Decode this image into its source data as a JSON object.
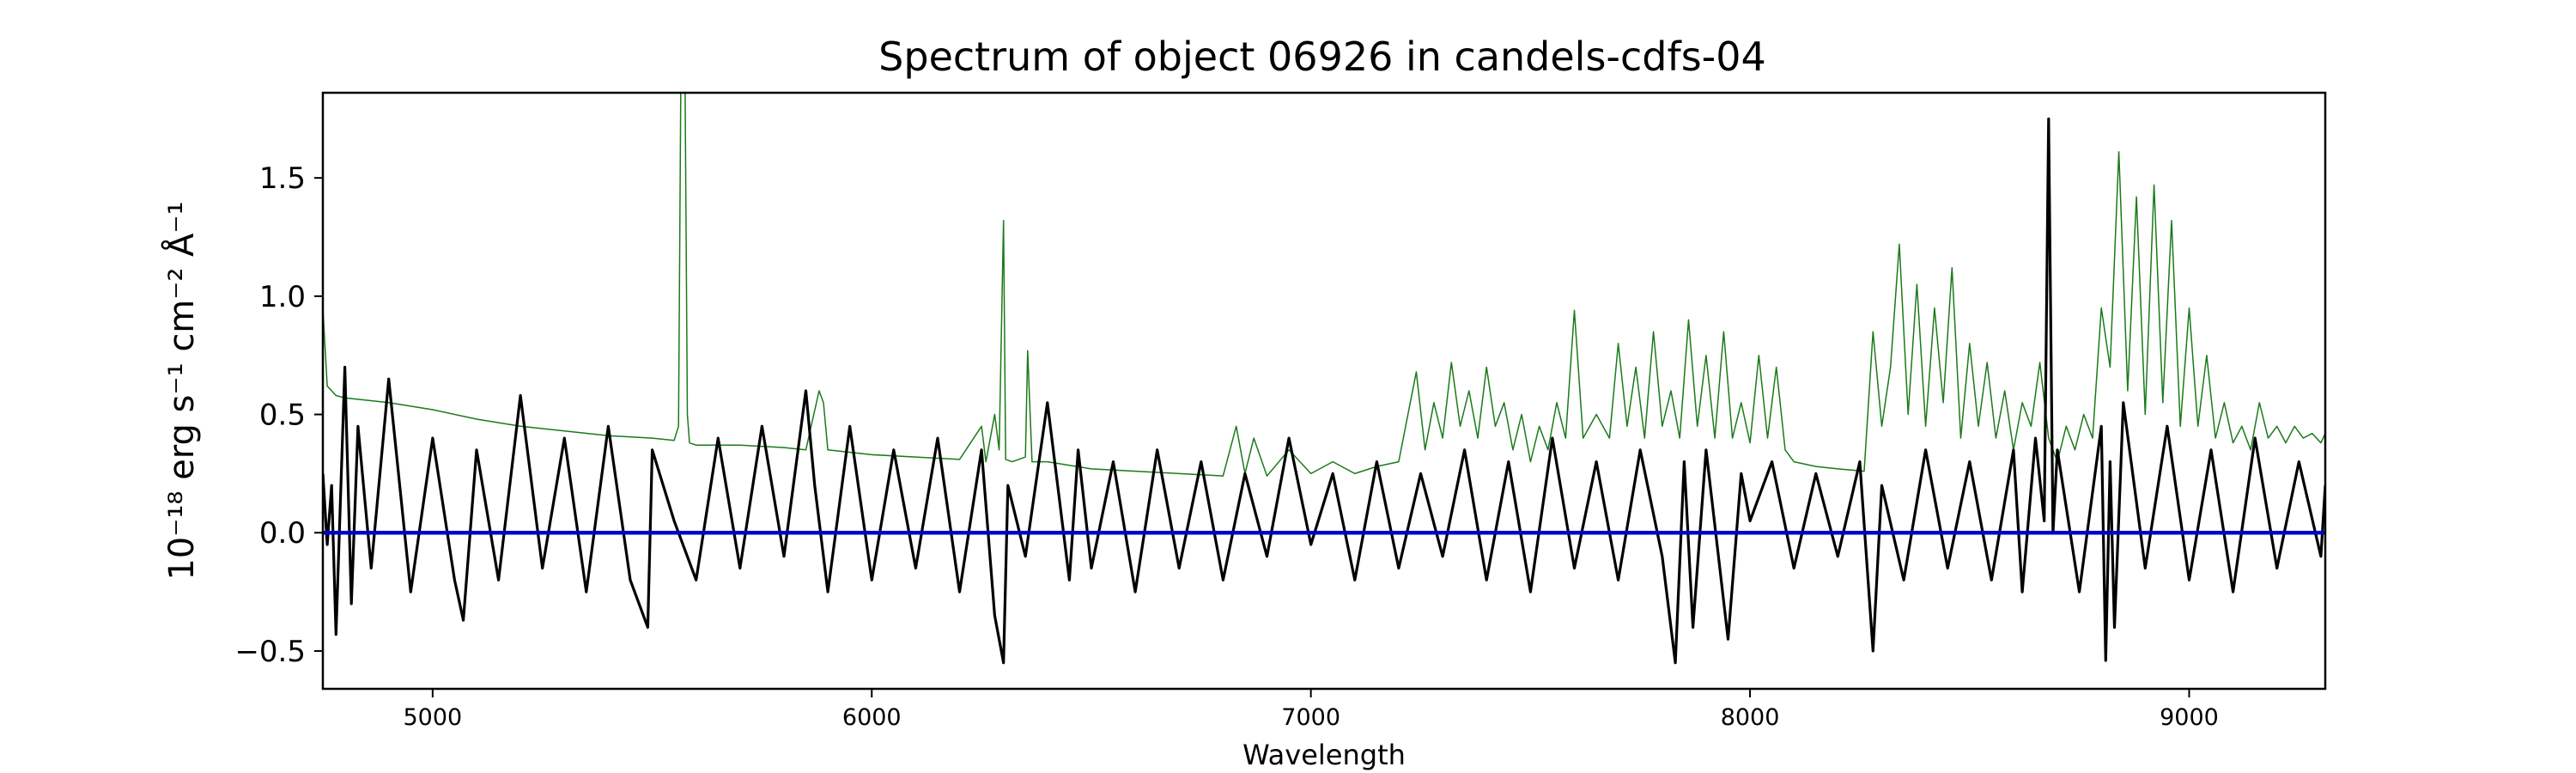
{
  "chart_data": {
    "type": "line",
    "title": "Spectrum of object 06926 in candels-cdfs-04",
    "xlabel": "Wavelength",
    "ylabel": "10⁻¹⁸ erg s⁻¹ cm⁻² Å⁻¹",
    "xlim": [
      4750,
      9310
    ],
    "ylim": [
      -0.66,
      1.86
    ],
    "x_ticks": [
      5000,
      6000,
      7000,
      8000,
      9000
    ],
    "y_ticks": [
      {
        "value": -0.5,
        "label": "−0.5"
      },
      {
        "value": 0.0,
        "label": "0.0"
      },
      {
        "value": 0.5,
        "label": "0.5"
      },
      {
        "value": 1.0,
        "label": "1.0"
      },
      {
        "value": 1.5,
        "label": "1.5"
      }
    ],
    "grid": false,
    "series": [
      {
        "role": "noise",
        "color": "#1a7a1a",
        "x": [
          4750,
          4760,
          4780,
          4800,
          4900,
          5000,
          5100,
          5200,
          5300,
          5400,
          5500,
          5550,
          5560,
          5565,
          5575,
          5580,
          5585,
          5600,
          5700,
          5800,
          5850,
          5880,
          5890,
          5900,
          5950,
          6000,
          6100,
          6200,
          6250,
          6260,
          6280,
          6290,
          6300,
          6305,
          6320,
          6350,
          6355,
          6365,
          6400,
          6500,
          6600,
          6700,
          6800,
          6830,
          6850,
          6870,
          6900,
          6950,
          7000,
          7050,
          7100,
          7150,
          7200,
          7240,
          7260,
          7280,
          7300,
          7320,
          7340,
          7360,
          7380,
          7400,
          7420,
          7440,
          7460,
          7480,
          7500,
          7520,
          7540,
          7560,
          7580,
          7600,
          7620,
          7650,
          7680,
          7700,
          7720,
          7740,
          7760,
          7780,
          7800,
          7820,
          7840,
          7860,
          7880,
          7900,
          7920,
          7940,
          7960,
          7980,
          8000,
          8020,
          8040,
          8060,
          8080,
          8100,
          8150,
          8200,
          8260,
          8280,
          8300,
          8320,
          8340,
          8360,
          8380,
          8400,
          8420,
          8440,
          8460,
          8480,
          8500,
          8520,
          8540,
          8560,
          8580,
          8600,
          8620,
          8640,
          8660,
          8680,
          8700,
          8720,
          8740,
          8760,
          8780,
          8800,
          8820,
          8840,
          8860,
          8880,
          8900,
          8920,
          8940,
          8960,
          8980,
          9000,
          9020,
          9040,
          9060,
          9080,
          9100,
          9120,
          9140,
          9160,
          9180,
          9200,
          9220,
          9240,
          9260,
          9280,
          9300,
          9310
        ],
        "y": [
          0.95,
          0.62,
          0.58,
          0.57,
          0.55,
          0.52,
          0.48,
          0.45,
          0.43,
          0.41,
          0.4,
          0.39,
          0.45,
          1.86,
          1.86,
          0.5,
          0.38,
          0.37,
          0.37,
          0.36,
          0.35,
          0.6,
          0.55,
          0.35,
          0.34,
          0.33,
          0.32,
          0.31,
          0.45,
          0.3,
          0.5,
          0.35,
          1.32,
          0.31,
          0.3,
          0.32,
          0.77,
          0.3,
          0.3,
          0.27,
          0.26,
          0.25,
          0.24,
          0.45,
          0.25,
          0.4,
          0.24,
          0.35,
          0.25,
          0.3,
          0.25,
          0.28,
          0.3,
          0.68,
          0.35,
          0.55,
          0.4,
          0.72,
          0.45,
          0.6,
          0.4,
          0.7,
          0.45,
          0.55,
          0.35,
          0.5,
          0.3,
          0.45,
          0.35,
          0.55,
          0.4,
          0.94,
          0.4,
          0.5,
          0.4,
          0.8,
          0.45,
          0.7,
          0.4,
          0.85,
          0.45,
          0.6,
          0.4,
          0.9,
          0.45,
          0.75,
          0.4,
          0.85,
          0.4,
          0.55,
          0.38,
          0.75,
          0.4,
          0.7,
          0.35,
          0.3,
          0.28,
          0.27,
          0.26,
          0.85,
          0.45,
          0.7,
          1.22,
          0.5,
          1.05,
          0.45,
          0.95,
          0.55,
          1.12,
          0.4,
          0.8,
          0.45,
          0.72,
          0.4,
          0.6,
          0.35,
          0.55,
          0.45,
          0.72,
          0.4,
          0.3,
          0.45,
          0.35,
          0.5,
          0.4,
          0.95,
          0.7,
          1.61,
          0.6,
          1.42,
          0.5,
          1.47,
          0.55,
          1.32,
          0.45,
          0.95,
          0.45,
          0.75,
          0.4,
          0.55,
          0.38,
          0.45,
          0.35,
          0.55,
          0.4,
          0.45,
          0.38,
          0.45,
          0.4,
          0.42,
          0.38,
          0.42
        ]
      },
      {
        "role": "flux",
        "color": "#000000",
        "x": [
          4750,
          4760,
          4770,
          4780,
          4800,
          4815,
          4830,
          4860,
          4900,
          4950,
          5000,
          5050,
          5070,
          5100,
          5150,
          5200,
          5250,
          5300,
          5350,
          5400,
          5450,
          5490,
          5500,
          5550,
          5600,
          5650,
          5700,
          5750,
          5800,
          5850,
          5870,
          5900,
          5950,
          6000,
          6050,
          6100,
          6150,
          6200,
          6250,
          6280,
          6300,
          6310,
          6350,
          6400,
          6450,
          6470,
          6500,
          6550,
          6600,
          6650,
          6700,
          6750,
          6800,
          6850,
          6900,
          6950,
          7000,
          7050,
          7100,
          7150,
          7200,
          7250,
          7300,
          7350,
          7400,
          7450,
          7500,
          7550,
          7600,
          7650,
          7700,
          7750,
          7800,
          7830,
          7850,
          7870,
          7900,
          7950,
          7980,
          8000,
          8050,
          8100,
          8150,
          8200,
          8250,
          8280,
          8300,
          8350,
          8400,
          8450,
          8500,
          8550,
          8600,
          8620,
          8650,
          8670,
          8680,
          8690,
          8700,
          8750,
          8800,
          8810,
          8820,
          8830,
          8850,
          8900,
          8950,
          9000,
          9050,
          9100,
          9150,
          9200,
          9250,
          9300,
          9310
        ],
        "y": [
          0.25,
          -0.05,
          0.2,
          -0.43,
          0.7,
          -0.3,
          0.45,
          -0.15,
          0.65,
          -0.25,
          0.4,
          -0.2,
          -0.37,
          0.35,
          -0.2,
          0.58,
          -0.15,
          0.4,
          -0.25,
          0.45,
          -0.2,
          -0.4,
          0.35,
          0.05,
          -0.2,
          0.4,
          -0.15,
          0.45,
          -0.1,
          0.6,
          0.2,
          -0.25,
          0.45,
          -0.2,
          0.35,
          -0.15,
          0.4,
          -0.25,
          0.35,
          -0.35,
          -0.55,
          0.2,
          -0.1,
          0.55,
          -0.2,
          0.35,
          -0.15,
          0.3,
          -0.25,
          0.35,
          -0.15,
          0.3,
          -0.2,
          0.25,
          -0.1,
          0.4,
          -0.05,
          0.25,
          -0.2,
          0.3,
          -0.15,
          0.25,
          -0.1,
          0.35,
          -0.2,
          0.3,
          -0.25,
          0.4,
          -0.15,
          0.3,
          -0.2,
          0.35,
          -0.1,
          -0.55,
          0.3,
          -0.4,
          0.35,
          -0.45,
          0.25,
          0.05,
          0.3,
          -0.15,
          0.25,
          -0.1,
          0.3,
          -0.5,
          0.2,
          -0.2,
          0.35,
          -0.15,
          0.3,
          -0.2,
          0.35,
          -0.25,
          0.4,
          0.05,
          1.75,
          0.0,
          0.35,
          -0.25,
          0.45,
          -0.54,
          0.3,
          -0.4,
          0.55,
          -0.15,
          0.45,
          -0.2,
          0.35,
          -0.25,
          0.4,
          -0.15,
          0.3,
          -0.1,
          0.2
        ]
      },
      {
        "role": "zero",
        "color": "#0000cc",
        "x": [
          4750,
          9310
        ],
        "y": [
          0,
          0
        ]
      }
    ]
  }
}
